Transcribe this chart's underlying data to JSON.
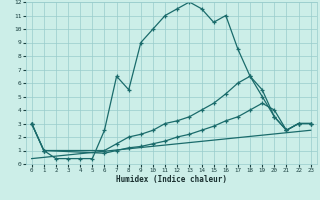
{
  "xlabel": "Humidex (Indice chaleur)",
  "bg_color": "#cceee8",
  "grid_color": "#99cccc",
  "line_color": "#1a6b6b",
  "xlim": [
    -0.5,
    23.5
  ],
  "ylim": [
    0,
    12
  ],
  "xticks": [
    0,
    1,
    2,
    3,
    4,
    5,
    6,
    7,
    8,
    9,
    10,
    11,
    12,
    13,
    14,
    15,
    16,
    17,
    18,
    19,
    20,
    21,
    22,
    23
  ],
  "yticks": [
    0,
    1,
    2,
    3,
    4,
    5,
    6,
    7,
    8,
    9,
    10,
    11,
    12
  ],
  "line1_x": [
    0,
    1,
    2,
    3,
    4,
    5,
    6,
    7,
    8,
    9,
    10,
    11,
    12,
    13,
    14,
    15,
    16,
    17,
    18,
    19,
    20,
    21,
    22,
    23
  ],
  "line1_y": [
    3,
    1,
    0.4,
    0.4,
    0.4,
    0.4,
    2.5,
    6.5,
    5.5,
    9.0,
    10.0,
    11.0,
    11.5,
    12.0,
    11.5,
    10.5,
    11.0,
    8.5,
    6.5,
    5.0,
    3.5,
    2.5,
    3.0,
    3.0
  ],
  "line2_x": [
    0,
    1,
    6,
    7,
    8,
    9,
    10,
    11,
    12,
    13,
    14,
    15,
    16,
    17,
    18,
    19,
    20,
    21,
    22,
    23
  ],
  "line2_y": [
    3,
    1,
    1.0,
    1.5,
    2.0,
    2.2,
    2.5,
    3.0,
    3.2,
    3.5,
    4.0,
    4.5,
    5.2,
    6.0,
    6.5,
    5.5,
    3.5,
    2.5,
    3.0,
    3.0
  ],
  "line3_x": [
    0,
    1,
    6,
    7,
    8,
    9,
    10,
    11,
    12,
    13,
    14,
    15,
    16,
    17,
    18,
    19,
    20,
    21,
    22,
    23
  ],
  "line3_y": [
    3,
    1,
    0.8,
    1.0,
    1.2,
    1.3,
    1.5,
    1.7,
    2.0,
    2.2,
    2.5,
    2.8,
    3.2,
    3.5,
    4.0,
    4.5,
    4.0,
    2.5,
    3.0,
    3.0
  ],
  "line4_x": [
    0,
    23
  ],
  "line4_y": [
    0.4,
    2.5
  ]
}
